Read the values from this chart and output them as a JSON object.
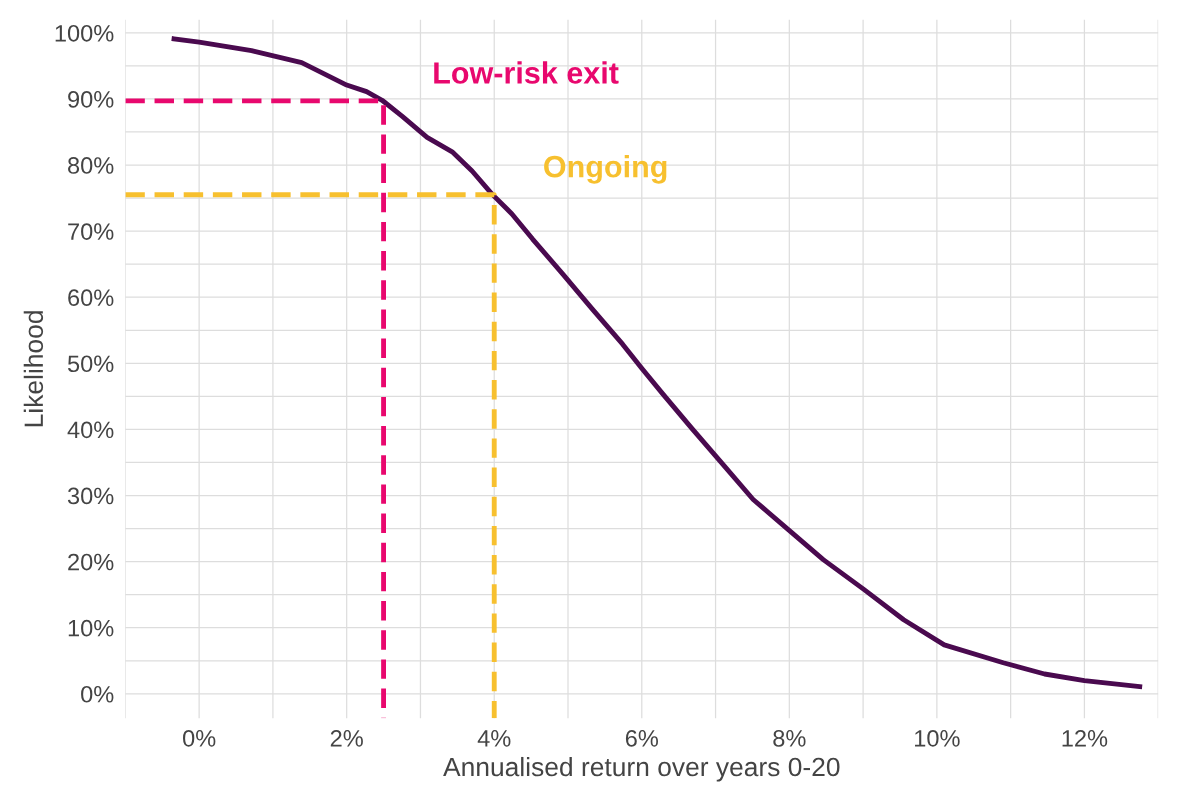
{
  "chart_data": {
    "type": "line",
    "xlabel": "Annualised return over years 0-20",
    "ylabel": "Likelihood",
    "xlim": [
      -1.0,
      13.0
    ],
    "ylim": [
      -3.7,
      102
    ],
    "xticks": [
      {
        "value": 0,
        "label": "0%"
      },
      {
        "value": 2,
        "label": "2%"
      },
      {
        "value": 4,
        "label": "4%"
      },
      {
        "value": 6,
        "label": "6%"
      },
      {
        "value": 8,
        "label": "8%"
      },
      {
        "value": 10,
        "label": "10%"
      },
      {
        "value": 12,
        "label": "12%"
      }
    ],
    "yticks": [
      {
        "value": 0,
        "label": "0%"
      },
      {
        "value": 10,
        "label": "10%"
      },
      {
        "value": 20,
        "label": "20%"
      },
      {
        "value": 30,
        "label": "30%"
      },
      {
        "value": 40,
        "label": "40%"
      },
      {
        "value": 50,
        "label": "50%"
      },
      {
        "value": 60,
        "label": "60%"
      },
      {
        "value": 70,
        "label": "70%"
      },
      {
        "value": 80,
        "label": "80%"
      },
      {
        "value": 90,
        "label": "90%"
      },
      {
        "value": 100,
        "label": "100%"
      }
    ],
    "grid": true,
    "marker": "none",
    "line_style": "solid",
    "legend": false,
    "series": [
      {
        "color": "#4a0a4f",
        "x": [
          -0.34,
          0,
          0.71,
          1.39,
          2.0,
          2.27,
          2.48,
          2.75,
          3.09,
          3.43,
          3.7,
          3.97,
          4.24,
          4.52,
          4.93,
          5.33,
          5.74,
          6.01,
          6.29,
          6.69,
          7.1,
          7.51,
          7.99,
          8.46,
          9.01,
          9.55,
          10.1,
          10.9,
          11.46,
          12.0,
          12.75
        ],
        "values": [
          99.1,
          98.6,
          97.3,
          95.5,
          92.1,
          91.1,
          89.8,
          87.4,
          84.2,
          82.0,
          79.1,
          75.6,
          72.6,
          68.8,
          63.5,
          58.2,
          52.9,
          49.1,
          45.3,
          40.0,
          34.7,
          29.4,
          24.8,
          20.3,
          15.8,
          11.2,
          7.4,
          4.7,
          3.0,
          2.0,
          1.1
        ]
      },
      {
        "name": "Low-risk exit",
        "color": "#e8086e",
        "line_style": "dashed",
        "x": [
          -1.0,
          2.5,
          2.5
        ],
        "values": [
          89.7,
          89.7,
          -3.7
        ]
      },
      {
        "name": "Ongoing",
        "color": "#f7c02f",
        "line_style": "dashed",
        "x": [
          -1.0,
          4.0,
          4.0
        ],
        "values": [
          75.5,
          75.5,
          -3.7
        ]
      }
    ]
  }
}
